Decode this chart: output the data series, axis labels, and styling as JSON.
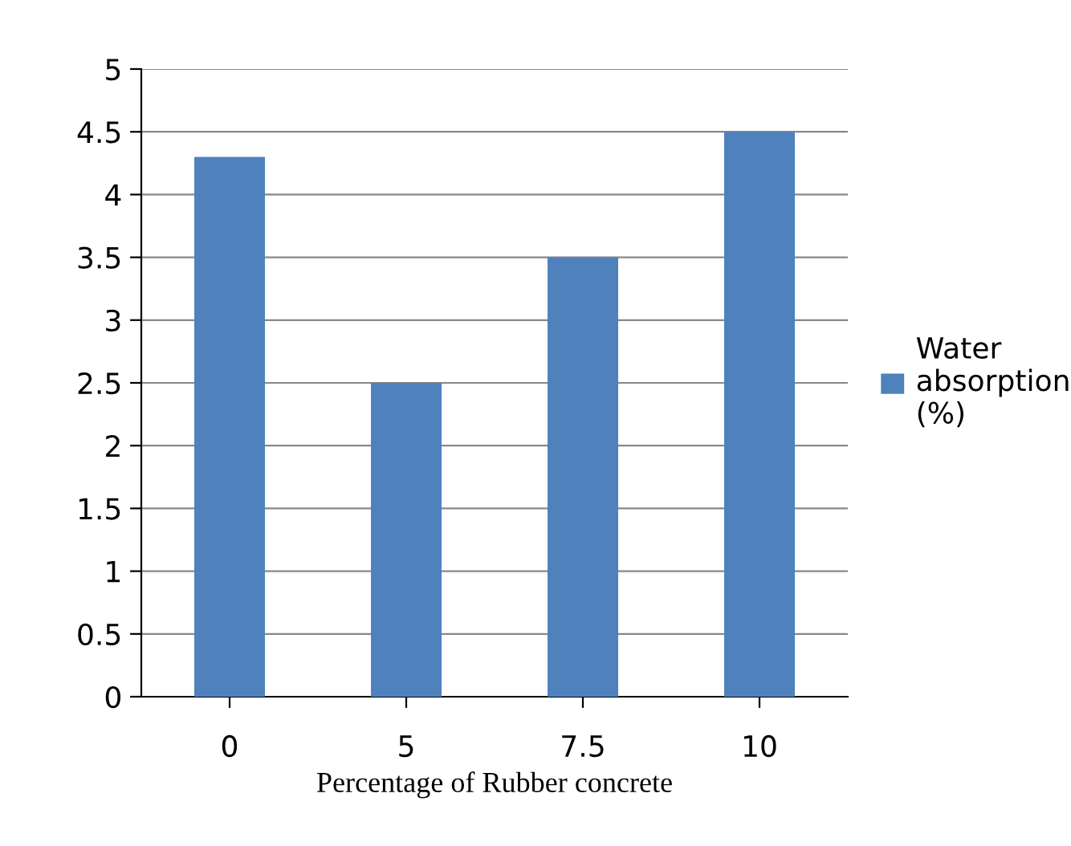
{
  "chart_data": {
    "type": "bar",
    "xlabel": "Percentage of Rubber concrete",
    "categories": [
      "0",
      "5",
      "7.5",
      "10"
    ],
    "series": [
      {
        "name": "Water absorption (%)",
        "color": "#4f81bd",
        "values": [
          4.3,
          2.5,
          3.5,
          4.5
        ]
      }
    ],
    "ylim": [
      0,
      5
    ],
    "yticks": [
      0,
      0.5,
      1,
      1.5,
      2,
      2.5,
      3,
      3.5,
      4,
      4.5,
      5
    ],
    "grid": "y",
    "legend": "right"
  }
}
